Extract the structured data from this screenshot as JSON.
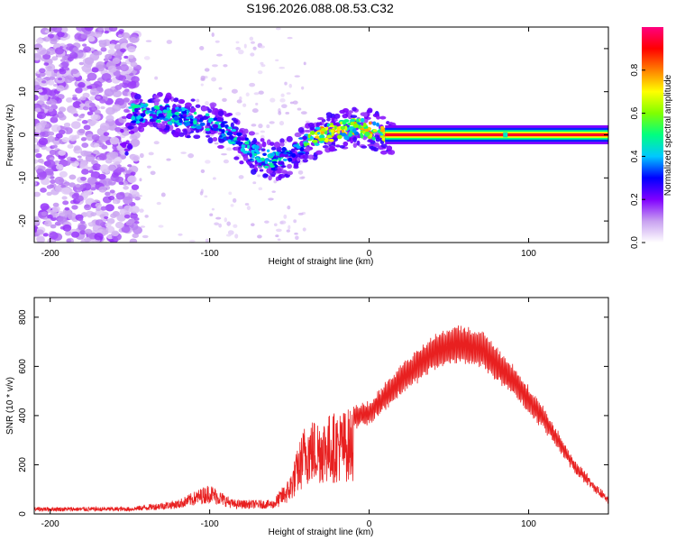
{
  "title": "S196.2026.088.08.53.C32",
  "chart_data": [
    {
      "type": "heatmap",
      "name": "spectrogram",
      "xlabel": "Height of straight line (km)",
      "ylabel": "Frequency (Hz)",
      "xlim": [
        -210,
        150
      ],
      "ylim": [
        -25,
        25
      ],
      "xticks": [
        -200,
        -100,
        0,
        100
      ],
      "yticks": [
        -20,
        -10,
        0,
        10,
        20
      ],
      "colorbar": {
        "label": "Normalized spectral amplitude",
        "range": [
          0,
          1
        ],
        "ticks": [
          0.0,
          0.2,
          0.4,
          0.6,
          0.8
        ],
        "tick_labels": [
          "0.0",
          "0.2",
          "0.4",
          "0.6",
          "0.8"
        ],
        "colormap": [
          "#ffffff",
          "#c8a0f0",
          "#8000ff",
          "#0000ff",
          "#00c8ff",
          "#00ff80",
          "#80ff00",
          "#ffff00",
          "#ff8000",
          "#ff0000",
          "#ff0080"
        ]
      },
      "ridge": [
        {
          "x": -150,
          "y": 5
        },
        {
          "x": -130,
          "y": 5
        },
        {
          "x": -115,
          "y": 4
        },
        {
          "x": -100,
          "y": 3
        },
        {
          "x": -90,
          "y": 1
        },
        {
          "x": -80,
          "y": -2
        },
        {
          "x": -70,
          "y": -5
        },
        {
          "x": -60,
          "y": -6
        },
        {
          "x": -50,
          "y": -5
        },
        {
          "x": -40,
          "y": -2
        },
        {
          "x": -30,
          "y": 0
        },
        {
          "x": -20,
          "y": 1
        },
        {
          "x": -10,
          "y": 1.5
        },
        {
          "x": 0,
          "y": 1.5
        },
        {
          "x": 10,
          "y": 0
        },
        {
          "x": 150,
          "y": 0
        }
      ]
    },
    {
      "type": "line",
      "name": "snr",
      "xlabel": "Height of straight line (km)",
      "ylabel": "SNR (10 * v/v)",
      "xlim": [
        -210,
        150
      ],
      "ylim": [
        0,
        880
      ],
      "xticks": [
        -200,
        -100,
        0,
        100
      ],
      "yticks": [
        0,
        200,
        400,
        600,
        800
      ],
      "color": "#e82020",
      "envelope": [
        {
          "x": -210,
          "y": 30
        },
        {
          "x": -150,
          "y": 30
        },
        {
          "x": -120,
          "y": 60
        },
        {
          "x": -100,
          "y": 130
        },
        {
          "x": -85,
          "y": 60
        },
        {
          "x": -60,
          "y": 60
        },
        {
          "x": -50,
          "y": 150
        },
        {
          "x": -40,
          "y": 380
        },
        {
          "x": -20,
          "y": 420
        },
        {
          "x": 0,
          "y": 450
        },
        {
          "x": 20,
          "y": 600
        },
        {
          "x": 40,
          "y": 720
        },
        {
          "x": 55,
          "y": 760
        },
        {
          "x": 70,
          "y": 740
        },
        {
          "x": 90,
          "y": 600
        },
        {
          "x": 110,
          "y": 420
        },
        {
          "x": 130,
          "y": 200
        },
        {
          "x": 150,
          "y": 60
        }
      ]
    }
  ]
}
